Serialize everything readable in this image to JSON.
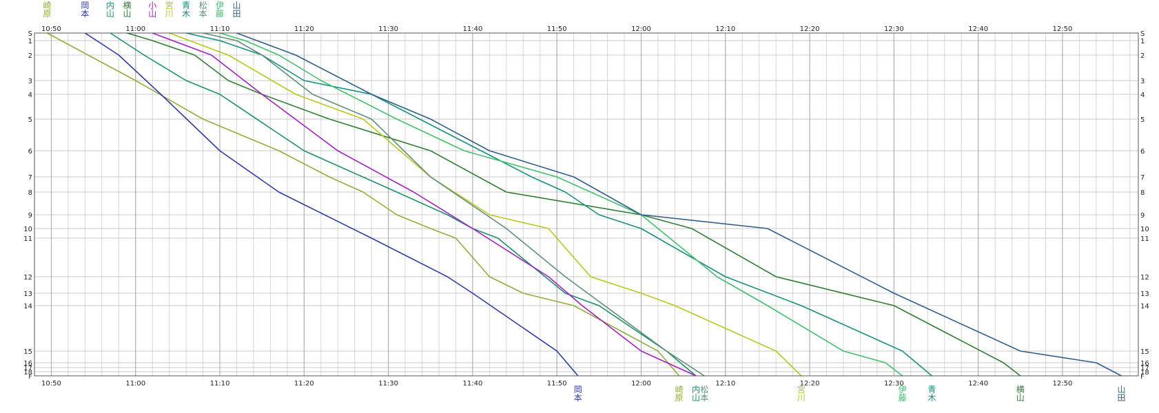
{
  "chart_data": {
    "type": "line",
    "title": "",
    "xlabel": "",
    "ylabel": "",
    "x_unit": "time (HH:MM)",
    "xlim": [
      "10:48",
      "12:59"
    ],
    "x_tick_labels": [
      "10:50",
      "11:00",
      "11:10",
      "11:20",
      "11:30",
      "11:40",
      "11:50",
      "12:00",
      "12:10",
      "12:20",
      "12:30",
      "12:40",
      "12:50"
    ],
    "grid": true,
    "legend": "none (runner names printed above start and below finish)",
    "stations": [
      "S",
      "1",
      "2",
      "3",
      "4",
      "5",
      "6",
      "7",
      "8",
      "9",
      "10",
      "11",
      "12",
      "13",
      "14",
      "15",
      "16",
      "17",
      "18",
      "F"
    ],
    "stations_note": "y axis is station order; the bottom labels 16/17/18/F overlap in the original",
    "series": [
      {
        "name": "崎原",
        "color": "#8fae3a",
        "start_label": "崎原",
        "finish_label": "崎原",
        "points": [
          [
            "10:49:30",
            "S"
          ],
          [
            "11:00:00",
            "3"
          ],
          [
            "11:08:00",
            "5"
          ],
          [
            "11:17:00",
            "6"
          ],
          [
            "11:23:00",
            "7"
          ],
          [
            "11:27:00",
            "8"
          ],
          [
            "11:31:00",
            "9"
          ],
          [
            "11:35:00",
            "10"
          ],
          [
            "11:38:00",
            "11"
          ],
          [
            "11:42:00",
            "12"
          ],
          [
            "11:46:00",
            "13"
          ],
          [
            "11:52:00",
            "14"
          ],
          [
            "12:02:00",
            "15"
          ],
          [
            "12:04:30",
            "F"
          ]
        ]
      },
      {
        "name": "岡本",
        "color": "#2b3aa8",
        "start_label": "岡本",
        "finish_label": "岡本",
        "points": [
          [
            "10:54:00",
            "S"
          ],
          [
            "10:58:00",
            "2"
          ],
          [
            "11:03:00",
            "4"
          ],
          [
            "11:10:00",
            "6"
          ],
          [
            "11:17:00",
            "8"
          ],
          [
            "11:28:00",
            "11"
          ],
          [
            "11:37:00",
            "12"
          ],
          [
            "11:40:00",
            "13"
          ],
          [
            "11:50:00",
            "15"
          ],
          [
            "11:52:30",
            "F"
          ]
        ]
      },
      {
        "name": "内山",
        "color": "#1a8f6a",
        "start_label": "内山",
        "finish_label": "内山",
        "points": [
          [
            "10:57:00",
            "S"
          ],
          [
            "11:01:00",
            "2"
          ],
          [
            "11:06:00",
            "3"
          ],
          [
            "11:10:00",
            "4"
          ],
          [
            "11:20:00",
            "6"
          ],
          [
            "11:31:00",
            "8"
          ],
          [
            "11:37:00",
            "9"
          ],
          [
            "11:40:00",
            "10"
          ],
          [
            "11:43:00",
            "11"
          ],
          [
            "11:51:00",
            "13"
          ],
          [
            "11:55:00",
            "14"
          ],
          [
            "12:03:00",
            "15"
          ],
          [
            "12:06:30",
            "F"
          ]
        ]
      },
      {
        "name": "横山",
        "color": "#2e7d32",
        "start_label": "横山",
        "finish_label": "横山",
        "points": [
          [
            "10:59:00",
            "S"
          ],
          [
            "11:02:00",
            "1"
          ],
          [
            "11:07:00",
            "2"
          ],
          [
            "11:11:00",
            "3"
          ],
          [
            "11:15:00",
            "4"
          ],
          [
            "11:23:00",
            "5"
          ],
          [
            "11:35:00",
            "6"
          ],
          [
            "11:44:00",
            "8"
          ],
          [
            "12:00:00",
            "9"
          ],
          [
            "12:06:00",
            "10"
          ],
          [
            "12:16:00",
            "12"
          ],
          [
            "12:30:00",
            "14"
          ],
          [
            "12:43:00",
            "16"
          ],
          [
            "12:45:00",
            "F"
          ]
        ]
      },
      {
        "name": "小山",
        "color": "#a020c0",
        "start_label": "小山",
        "finish_label": "",
        "points": [
          [
            "11:02:00",
            "S"
          ],
          [
            "11:09:00",
            "2"
          ],
          [
            "11:15:00",
            "4"
          ],
          [
            "11:24:00",
            "6"
          ],
          [
            "11:33:00",
            "8"
          ],
          [
            "11:40:00",
            "10"
          ],
          [
            "11:49:00",
            "12"
          ],
          [
            "11:53:00",
            "14"
          ],
          [
            "12:00:00",
            "15"
          ],
          [
            "12:06:30",
            "F"
          ]
        ]
      },
      {
        "name": "宮川",
        "color": "#b8c71a",
        "start_label": "宮川",
        "finish_label": "宮川",
        "points": [
          [
            "11:04:00",
            "S"
          ],
          [
            "11:11:00",
            "2"
          ],
          [
            "11:19:00",
            "4"
          ],
          [
            "11:27:00",
            "5"
          ],
          [
            "11:35:00",
            "7"
          ],
          [
            "11:42:00",
            "9"
          ],
          [
            "11:49:00",
            "10"
          ],
          [
            "11:54:00",
            "12"
          ],
          [
            "12:00:00",
            "13"
          ],
          [
            "12:04:00",
            "14"
          ],
          [
            "12:16:00",
            "15"
          ],
          [
            "12:19:00",
            "F"
          ]
        ]
      },
      {
        "name": "青木",
        "color": "#158f7e",
        "start_label": "青木",
        "finish_label": "青木",
        "points": [
          [
            "11:06:00",
            "S"
          ],
          [
            "11:10:00",
            "1"
          ],
          [
            "11:15:00",
            "2"
          ],
          [
            "11:20:00",
            "3"
          ],
          [
            "11:28:00",
            "4"
          ],
          [
            "11:41:00",
            "6"
          ],
          [
            "11:47:00",
            "7"
          ],
          [
            "11:51:00",
            "8"
          ],
          [
            "11:55:00",
            "9"
          ],
          [
            "12:00:00",
            "10"
          ],
          [
            "12:10:00",
            "12"
          ],
          [
            "12:19:00",
            "14"
          ],
          [
            "12:31:00",
            "15"
          ],
          [
            "12:34:30",
            "F"
          ]
        ]
      },
      {
        "name": "松本",
        "color": "#5e8f78",
        "start_label": "松本",
        "finish_label": "松本",
        "points": [
          [
            "11:08:00",
            "S"
          ],
          [
            "11:12:00",
            "1"
          ],
          [
            "11:15:00",
            "2"
          ],
          [
            "11:21:00",
            "4"
          ],
          [
            "11:28:00",
            "5"
          ],
          [
            "11:35:00",
            "7"
          ],
          [
            "11:44:00",
            "10"
          ],
          [
            "11:51:00",
            "12"
          ],
          [
            "12:03:00",
            "15"
          ],
          [
            "12:07:30",
            "F"
          ]
        ]
      },
      {
        "name": "伊藤",
        "color": "#3ec06a",
        "start_label": "伊藤",
        "finish_label": "伊藤",
        "points": [
          [
            "11:10:00",
            "S"
          ],
          [
            "11:13:00",
            "1"
          ],
          [
            "11:17:00",
            "2"
          ],
          [
            "11:22:00",
            "3"
          ],
          [
            "11:31:00",
            "5"
          ],
          [
            "11:39:00",
            "6"
          ],
          [
            "11:50:00",
            "7"
          ],
          [
            "12:00:00",
            "9"
          ],
          [
            "12:09:00",
            "12"
          ],
          [
            "12:15:00",
            "14"
          ],
          [
            "12:24:00",
            "15"
          ],
          [
            "12:29:00",
            "16"
          ],
          [
            "12:31:00",
            "F"
          ]
        ]
      },
      {
        "name": "山田",
        "color": "#2e5d8a",
        "start_label": "山田",
        "finish_label": "山田",
        "points": [
          [
            "11:12:00",
            "S"
          ],
          [
            "11:19:00",
            "2"
          ],
          [
            "11:28:00",
            "4"
          ],
          [
            "11:35:00",
            "5"
          ],
          [
            "11:42:00",
            "6"
          ],
          [
            "11:52:00",
            "7"
          ],
          [
            "12:00:00",
            "9"
          ],
          [
            "12:15:00",
            "10"
          ],
          [
            "12:30:00",
            "13"
          ],
          [
            "12:45:00",
            "15"
          ],
          [
            "12:54:00",
            "16"
          ],
          [
            "12:57:00",
            "F"
          ]
        ]
      }
    ]
  }
}
